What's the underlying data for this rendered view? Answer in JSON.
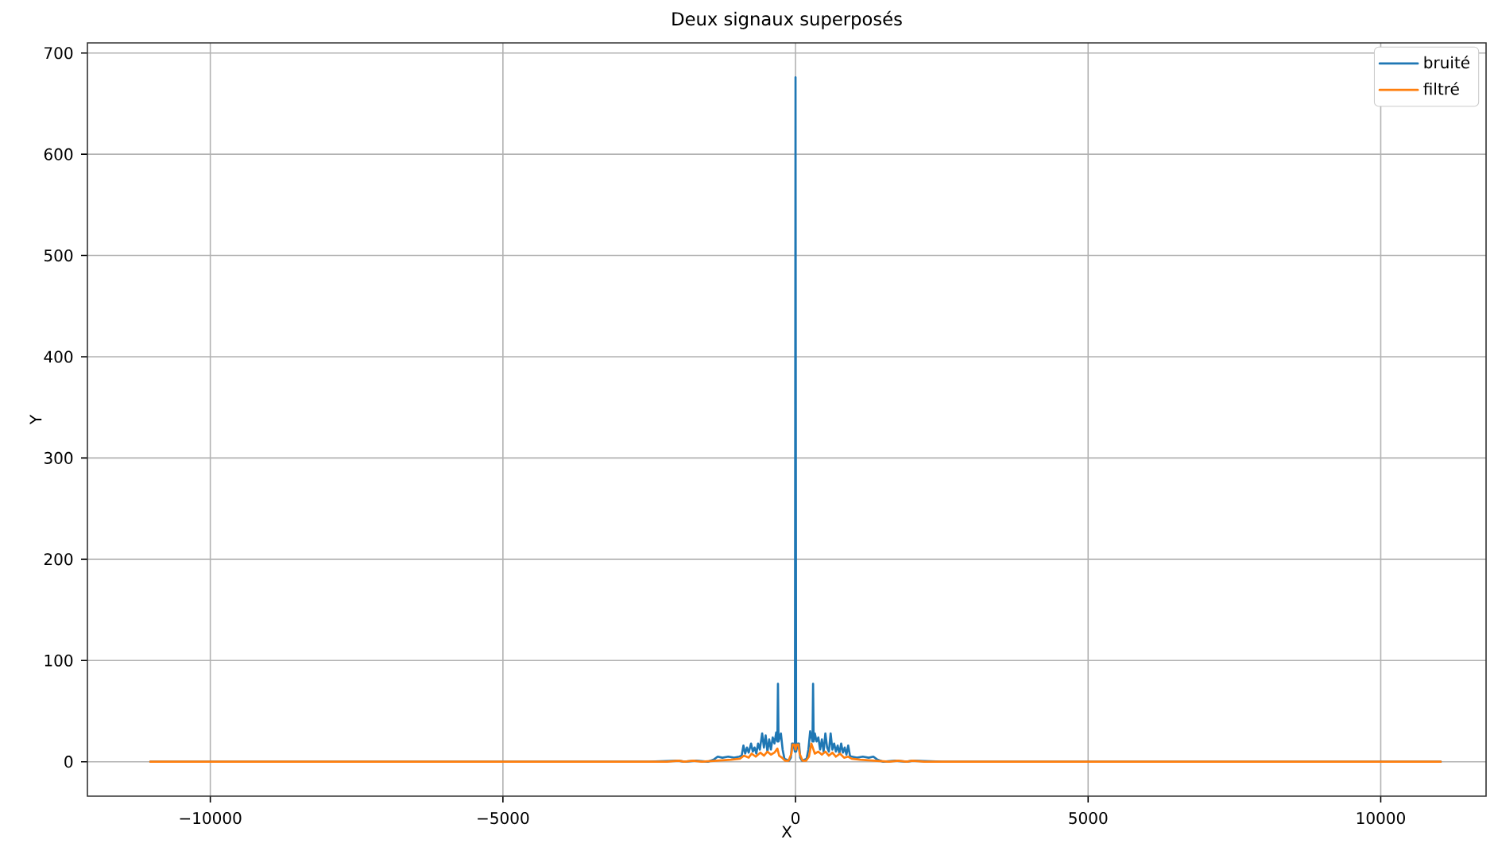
{
  "chart_data": {
    "type": "line",
    "title": "Deux signaux superposés",
    "xlabel": "X",
    "ylabel": "Y",
    "xlim": [
      -12100,
      11800
    ],
    "ylim": [
      -34,
      710
    ],
    "xticks": [
      {
        "value": -10000,
        "label": "−10000"
      },
      {
        "value": -5000,
        "label": "−5000"
      },
      0,
      5000,
      10000
    ],
    "yticks": [
      0,
      100,
      200,
      300,
      400,
      500,
      600,
      700
    ],
    "grid": true,
    "legend": "top right",
    "marker": "none",
    "line_style": "solid",
    "series": [
      {
        "name": "bruité",
        "color": "#1f77b4",
        "x": [
          -11025,
          -2500,
          -2000,
          -1900,
          -1700,
          -1500,
          -1400,
          -1330,
          -1250,
          -1150,
          -1050,
          -960,
          -920,
          -890,
          -860,
          -830,
          -800,
          -760,
          -730,
          -700,
          -670,
          -640,
          -610,
          -570,
          -540,
          -510,
          -480,
          -450,
          -420,
          -390,
          -360,
          -330,
          -310,
          -300,
          -290,
          -250,
          -220,
          -190,
          -150,
          -110,
          -80,
          -60,
          -40,
          -10,
          0,
          10,
          40,
          60,
          80,
          110,
          150,
          190,
          220,
          250,
          290,
          300,
          310,
          330,
          360,
          390,
          420,
          450,
          480,
          510,
          540,
          570,
          600,
          630,
          660,
          690,
          720,
          750,
          780,
          810,
          840,
          870,
          900,
          930,
          960,
          1050,
          1150,
          1250,
          1330,
          1400,
          1500,
          1700,
          1900,
          2000,
          2500,
          11025
        ],
        "values": [
          0,
          0,
          1,
          0,
          1,
          0,
          2,
          5,
          4,
          5,
          4,
          5,
          6,
          16,
          8,
          14,
          9,
          18,
          10,
          14,
          8,
          18,
          12,
          28,
          14,
          26,
          10,
          22,
          12,
          24,
          18,
          29,
          20,
          77,
          20,
          28,
          12,
          3,
          2,
          1,
          4,
          18,
          18,
          10,
          676,
          10,
          18,
          18,
          4,
          1,
          2,
          3,
          12,
          30,
          20,
          77,
          20,
          28,
          20,
          24,
          12,
          22,
          10,
          28,
          14,
          10,
          28,
          12,
          18,
          10,
          16,
          8,
          18,
          9,
          14,
          7,
          16,
          6,
          5,
          4,
          5,
          4,
          5,
          2,
          0,
          1,
          0,
          1,
          0,
          0
        ]
      },
      {
        "name": "filtré",
        "color": "#ff7f0e",
        "x": [
          -11025,
          -2200,
          -2000,
          -1900,
          -1750,
          -1600,
          -1350,
          -1100,
          -950,
          -880,
          -800,
          -750,
          -680,
          -600,
          -540,
          -480,
          -420,
          -360,
          -310,
          -280,
          -230,
          -180,
          -120,
          -70,
          -50,
          -20,
          0,
          20,
          50,
          70,
          120,
          180,
          230,
          270,
          300,
          330,
          390,
          450,
          510,
          570,
          630,
          690,
          760,
          830,
          900,
          960,
          1100,
          1350,
          1600,
          1750,
          1900,
          2000,
          2200,
          11025
        ],
        "values": [
          0,
          0,
          1,
          0,
          1,
          0,
          1,
          2,
          3,
          6,
          4,
          8,
          5,
          9,
          6,
          10,
          7,
          9,
          13,
          6,
          4,
          1,
          1,
          8,
          17,
          17,
          12,
          17,
          17,
          8,
          1,
          1,
          5,
          18,
          13,
          8,
          10,
          7,
          10,
          6,
          9,
          5,
          8,
          4,
          5,
          3,
          2,
          1,
          0,
          1,
          0,
          1,
          0,
          0
        ]
      }
    ]
  }
}
